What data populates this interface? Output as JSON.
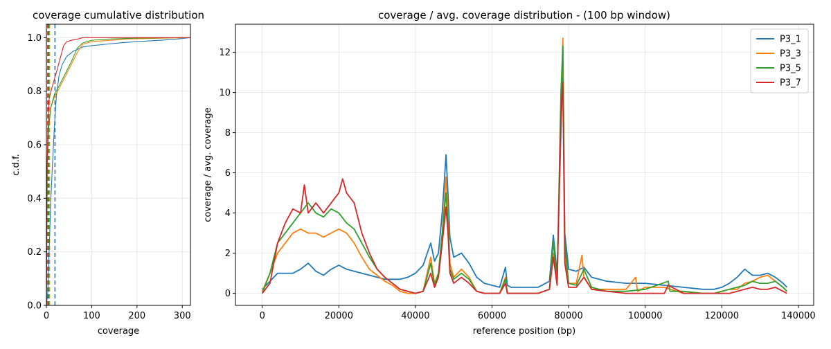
{
  "chart_data": [
    {
      "type": "line",
      "title": "coverage cumulative distribution",
      "xlabel": "coverage",
      "ylabel": "c.d.f.",
      "xlim": [
        0,
        318
      ],
      "ylim": [
        0,
        1.05
      ],
      "xticks": [
        0,
        100,
        200,
        300
      ],
      "yticks": [
        0.0,
        0.2,
        0.4,
        0.6,
        0.8,
        1.0
      ],
      "grid": true,
      "series": [
        {
          "name": "P3_1",
          "color": "#1f77b4",
          "mean_line": 19,
          "x": [
            0,
            3,
            6,
            10,
            14,
            18,
            22,
            28,
            35,
            45,
            60,
            80,
            100,
            130,
            160,
            200,
            250,
            290,
            318
          ],
          "y": [
            0,
            0.05,
            0.2,
            0.4,
            0.55,
            0.68,
            0.78,
            0.86,
            0.9,
            0.93,
            0.95,
            0.965,
            0.97,
            0.975,
            0.98,
            0.985,
            0.99,
            0.995,
            1.0
          ]
        },
        {
          "name": "P3_3",
          "color": "#ff7f0e",
          "mean_line": 7,
          "x": [
            0,
            2,
            5,
            10,
            18,
            28,
            40,
            55,
            70,
            80,
            100,
            140,
            180,
            318
          ],
          "y": [
            0,
            0.55,
            0.68,
            0.74,
            0.78,
            0.81,
            0.85,
            0.9,
            0.95,
            0.975,
            0.985,
            0.99,
            0.995,
            1.0
          ]
        },
        {
          "name": "P3_5",
          "color": "#2ca02c",
          "mean_line": 5,
          "x": [
            0,
            2,
            5,
            10,
            18,
            28,
            40,
            55,
            68,
            80,
            100,
            140,
            200,
            318
          ],
          "y": [
            0,
            0.52,
            0.66,
            0.74,
            0.79,
            0.82,
            0.86,
            0.91,
            0.96,
            0.98,
            0.99,
            0.995,
            0.998,
            1.0
          ]
        },
        {
          "name": "P3_7",
          "color": "#d62728",
          "mean_line": 3,
          "x": [
            0,
            1,
            3,
            6,
            10,
            15,
            22,
            30,
            38,
            45,
            55,
            70,
            80,
            318
          ],
          "y": [
            0,
            0.45,
            0.65,
            0.77,
            0.8,
            0.83,
            0.87,
            0.92,
            0.97,
            0.985,
            0.99,
            0.995,
            1.0,
            1.0
          ]
        }
      ]
    },
    {
      "type": "line",
      "title": "coverage / avg. coverage distribution - (100 bp window)",
      "xlabel": "reference position (bp)",
      "ylabel": "coverage / avg. coverage",
      "xlim": [
        -7000,
        144000
      ],
      "ylim": [
        -0.6,
        13.4
      ],
      "xticks": [
        0,
        20000,
        40000,
        60000,
        80000,
        100000,
        120000,
        140000
      ],
      "yticks": [
        0,
        2,
        4,
        6,
        8,
        10,
        12
      ],
      "grid": true,
      "legend": "top-right",
      "series": [
        {
          "name": "P3_1",
          "color": "#1f77b4",
          "x": [
            0,
            2000,
            4000,
            6000,
            8000,
            10000,
            12000,
            14000,
            16000,
            18000,
            20000,
            22000,
            24000,
            26000,
            28000,
            30000,
            32000,
            34000,
            36000,
            38000,
            40000,
            42000,
            44000,
            45000,
            46000,
            47000,
            48000,
            48500,
            49000,
            50000,
            52000,
            54000,
            56000,
            58000,
            60000,
            62000,
            63500,
            64000,
            65000,
            68000,
            72000,
            75000,
            76000,
            77000,
            78000,
            78500,
            79000,
            80000,
            82000,
            84000,
            86000,
            90000,
            95000,
            100000,
            105000,
            110000,
            115000,
            118000,
            120000,
            122000,
            124000,
            126000,
            128000,
            130000,
            132000,
            134000,
            136000,
            137000
          ],
          "y": [
            0.2,
            0.6,
            1.0,
            1.0,
            1.0,
            1.2,
            1.5,
            1.1,
            0.9,
            1.2,
            1.4,
            1.2,
            1.1,
            1.0,
            0.9,
            0.8,
            0.7,
            0.7,
            0.7,
            0.8,
            1.0,
            1.4,
            2.5,
            1.6,
            2.0,
            4.0,
            6.9,
            5.0,
            2.8,
            1.8,
            2.0,
            1.5,
            0.8,
            0.5,
            0.4,
            0.3,
            1.3,
            0.4,
            0.3,
            0.3,
            0.3,
            0.6,
            2.9,
            1.0,
            8.0,
            11.2,
            3.0,
            1.2,
            1.1,
            1.3,
            0.8,
            0.6,
            0.5,
            0.5,
            0.4,
            0.3,
            0.2,
            0.2,
            0.3,
            0.5,
            0.8,
            1.2,
            0.9,
            0.9,
            1.0,
            0.8,
            0.5,
            0.3
          ]
        },
        {
          "name": "P3_3",
          "color": "#ff7f0e",
          "x": [
            0,
            2000,
            4000,
            6000,
            8000,
            10000,
            12000,
            14000,
            16000,
            18000,
            20000,
            22000,
            24000,
            26000,
            28000,
            30000,
            32000,
            34000,
            36000,
            38000,
            40000,
            42000,
            44000,
            45000,
            46000,
            47000,
            48000,
            48500,
            49000,
            50000,
            52000,
            54000,
            56000,
            58000,
            60000,
            62000,
            63500,
            64000,
            65000,
            68000,
            72000,
            75000,
            76000,
            77000,
            78000,
            78500,
            79000,
            80000,
            82000,
            83500,
            84000,
            86000,
            90000,
            95000,
            97500,
            98000,
            100000,
            105000,
            110000,
            115000,
            118000,
            120000,
            122000,
            124000,
            126000,
            128000,
            130000,
            132000,
            134000,
            136000,
            137000
          ],
          "y": [
            0.1,
            1.0,
            2.0,
            2.5,
            3.0,
            3.2,
            3.0,
            3.0,
            2.8,
            3.0,
            3.2,
            3.0,
            2.5,
            1.8,
            1.2,
            0.9,
            0.6,
            0.4,
            0.1,
            0.0,
            0.0,
            0.1,
            1.8,
            0.5,
            1.0,
            3.0,
            5.8,
            4.0,
            1.5,
            0.8,
            1.2,
            0.8,
            0.1,
            0.0,
            0.0,
            0.0,
            0.8,
            0.0,
            0.0,
            0.0,
            0.0,
            0.2,
            2.0,
            0.5,
            9.0,
            12.7,
            2.0,
            0.5,
            0.5,
            1.9,
            0.8,
            0.2,
            0.2,
            0.2,
            0.8,
            0.1,
            0.3,
            0.3,
            0.0,
            0.0,
            0.0,
            0.1,
            0.2,
            0.2,
            0.5,
            0.6,
            0.8,
            0.9,
            0.6,
            0.3,
            0.1
          ]
        },
        {
          "name": "P3_5",
          "color": "#2ca02c",
          "x": [
            0,
            2000,
            4000,
            6000,
            8000,
            10000,
            12000,
            14000,
            16000,
            18000,
            20000,
            22000,
            24000,
            26000,
            28000,
            30000,
            32000,
            34000,
            36000,
            38000,
            40000,
            42000,
            44000,
            45000,
            46000,
            47000,
            48000,
            48500,
            49000,
            50000,
            52000,
            54000,
            56000,
            58000,
            60000,
            62000,
            63500,
            64000,
            65000,
            68000,
            72000,
            75000,
            76000,
            77000,
            78000,
            78500,
            79000,
            80000,
            82000,
            84000,
            86000,
            90000,
            95000,
            100000,
            106000,
            106500,
            110000,
            115000,
            118000,
            120000,
            122000,
            124000,
            126000,
            128000,
            130000,
            132000,
            134000,
            136000,
            137000
          ],
          "y": [
            0.0,
            1.0,
            2.5,
            3.0,
            3.5,
            4.0,
            4.5,
            4.0,
            3.8,
            4.2,
            4.0,
            3.5,
            3.2,
            2.5,
            1.8,
            1.2,
            0.8,
            0.5,
            0.2,
            0.1,
            0.0,
            0.1,
            1.5,
            0.4,
            1.0,
            3.0,
            5.0,
            3.5,
            1.2,
            0.7,
            1.0,
            0.7,
            0.1,
            0.0,
            0.0,
            0.0,
            0.7,
            0.0,
            0.0,
            0.0,
            0.0,
            0.2,
            2.6,
            0.5,
            10.0,
            12.3,
            2.5,
            0.5,
            0.4,
            1.2,
            0.3,
            0.1,
            0.1,
            0.2,
            0.6,
            0.1,
            0.1,
            0.0,
            0.0,
            0.1,
            0.2,
            0.3,
            0.4,
            0.6,
            0.5,
            0.5,
            0.6,
            0.3,
            0.1
          ]
        },
        {
          "name": "P3_7",
          "color": "#d62728",
          "x": [
            0,
            2000,
            4000,
            6000,
            8000,
            10000,
            11000,
            12000,
            14000,
            16000,
            18000,
            20000,
            21000,
            22000,
            24000,
            26000,
            28000,
            30000,
            32000,
            34000,
            36000,
            38000,
            40000,
            42000,
            44000,
            45000,
            46000,
            47000,
            48000,
            48500,
            49000,
            50000,
            52000,
            54000,
            56000,
            58000,
            60000,
            62000,
            63500,
            64000,
            65000,
            68000,
            72000,
            75000,
            76000,
            77000,
            78000,
            78500,
            79000,
            80000,
            82000,
            84000,
            86000,
            90000,
            95000,
            100000,
            105000,
            106000,
            110000,
            115000,
            118000,
            120000,
            122000,
            124000,
            126000,
            128000,
            130000,
            132000,
            134000,
            136000,
            137000
          ],
          "y": [
            0.0,
            0.5,
            2.5,
            3.5,
            4.2,
            4.0,
            5.4,
            4.0,
            4.5,
            4.0,
            4.5,
            5.0,
            5.7,
            5.0,
            4.5,
            3.0,
            2.0,
            1.2,
            0.8,
            0.5,
            0.2,
            0.1,
            0.0,
            0.1,
            1.0,
            0.3,
            0.8,
            2.5,
            4.3,
            3.0,
            1.0,
            0.5,
            0.8,
            0.5,
            0.1,
            0.0,
            0.0,
            0.0,
            0.5,
            0.0,
            0.0,
            0.0,
            0.0,
            0.2,
            1.8,
            0.4,
            9.0,
            10.5,
            1.5,
            0.3,
            0.3,
            0.8,
            0.2,
            0.1,
            0.0,
            0.0,
            0.0,
            0.4,
            0.0,
            0.0,
            0.0,
            0.0,
            0.0,
            0.1,
            0.2,
            0.3,
            0.2,
            0.2,
            0.3,
            0.1,
            0.0
          ]
        }
      ]
    }
  ]
}
